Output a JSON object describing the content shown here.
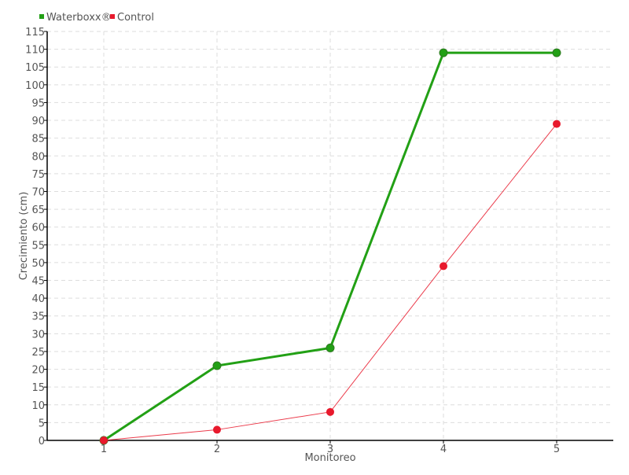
{
  "chart_data": {
    "type": "line",
    "title": "",
    "xlabel": "Monitoreo",
    "ylabel": "Crecimiento (cm)",
    "x": [
      1,
      2,
      3,
      4,
      5
    ],
    "xlim": [
      0.5,
      5.5
    ],
    "ylim": [
      0,
      115
    ],
    "ytick_step": 5,
    "grid": true,
    "legend_position": "top-left",
    "series": [
      {
        "name": "Waterboxx®",
        "color": "#22a015",
        "values": [
          0,
          21,
          26,
          109,
          109
        ]
      },
      {
        "name": "Control",
        "color": "#e8192c",
        "values": [
          0,
          3,
          8,
          49,
          89
        ]
      }
    ]
  }
}
